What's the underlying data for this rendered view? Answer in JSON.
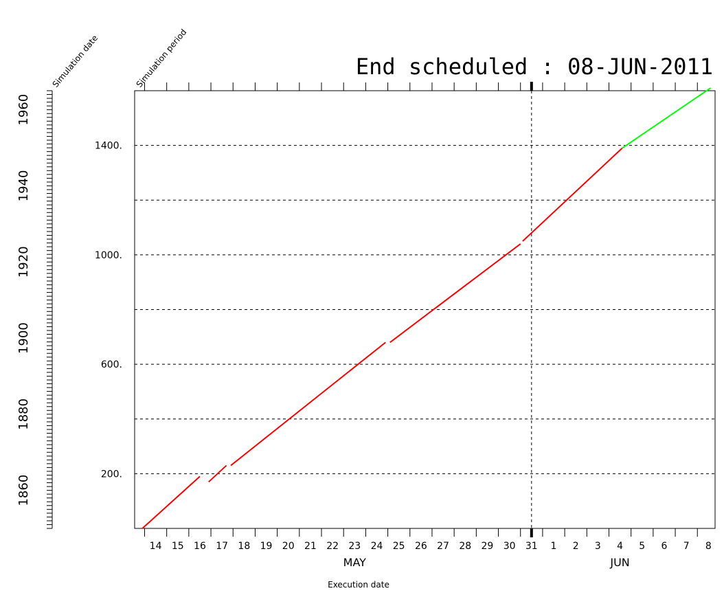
{
  "header": {
    "title": "End scheduled : 08-JUN-2011",
    "sim_date_label": "Simulation date",
    "sim_period_label": "Simulation period",
    "x_axis_label": "Execution date"
  },
  "chart_data": {
    "type": "line",
    "title": "End scheduled : 08-JUN-2011",
    "xlabel": "Execution date",
    "ylabel": "",
    "xlim": [
      13.55,
      39.8
    ],
    "ylim": [
      0,
      1600
    ],
    "y_ticks": [
      200,
      600,
      1000,
      1400
    ],
    "y_tick_labels": [
      "200.",
      "600.",
      "1000.",
      "1400."
    ],
    "y_grid": [
      200,
      400,
      600,
      800,
      1000,
      1200,
      1400
    ],
    "x_tick_days": [
      14,
      15,
      16,
      17,
      18,
      19,
      20,
      21,
      22,
      23,
      24,
      25,
      26,
      27,
      28,
      29,
      30,
      31,
      32,
      33,
      34,
      35,
      36,
      37,
      38,
      39
    ],
    "x_tick_labels": [
      "14",
      "15",
      "16",
      "17",
      "18",
      "19",
      "20",
      "21",
      "22",
      "23",
      "24",
      "25",
      "26",
      "27",
      "28",
      "29",
      "30",
      "31",
      "1",
      "2",
      "3",
      "4",
      "5",
      "6",
      "7",
      "8"
    ],
    "months": [
      {
        "label": "MAY",
        "at_day": 23.5
      },
      {
        "label": "JUN",
        "at_day": 35.5
      }
    ],
    "today_marker_day": 31.5,
    "sim_date_ticks": [
      1860,
      1880,
      1900,
      1920,
      1940,
      1960
    ],
    "sim_date_range": [
      1850,
      1965
    ],
    "series": [
      {
        "color": "#ff0000",
        "segments": [
          [
            [
              13.9,
              0
            ],
            [
              16.5,
              190
            ]
          ],
          [
            [
              16.9,
              170
            ],
            [
              17.7,
              230
            ]
          ],
          [
            [
              17.9,
              230
            ],
            [
              24.9,
              680
            ]
          ],
          [
            [
              25.1,
              680
            ],
            [
              31.0,
              1040
            ]
          ],
          [
            [
              31.1,
              1050
            ],
            [
              35.6,
              1390
            ]
          ]
        ]
      },
      {
        "color": "#00ff00",
        "segments": [
          [
            [
              35.6,
              1390
            ],
            [
              39.6,
              1610
            ]
          ]
        ]
      }
    ],
    "grid": true
  }
}
